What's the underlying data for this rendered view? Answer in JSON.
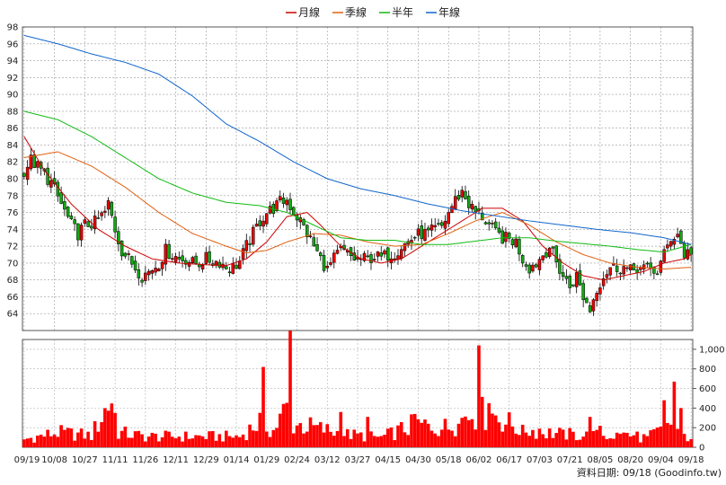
{
  "chart_data": {
    "type": "candlestick",
    "legend": {
      "placement": "top-center",
      "items": [
        {
          "name": "月線",
          "color": "#cc0000"
        },
        {
          "name": "季線",
          "color": "#e06010"
        },
        {
          "name": "半年",
          "color": "#11bb11"
        },
        {
          "name": "年線",
          "color": "#1166cc"
        }
      ]
    },
    "price_axis": {
      "min": 62,
      "max": 98,
      "ticks": [
        64,
        66,
        68,
        70,
        72,
        74,
        76,
        78,
        80,
        82,
        84,
        86,
        88,
        90,
        92,
        94,
        96,
        98
      ],
      "grid": true
    },
    "volume_axis": {
      "min": 0,
      "max": 1100,
      "ticks": [
        0,
        200,
        400,
        600,
        800,
        1000
      ],
      "tick_labels": [
        "0",
        "200",
        "400",
        "600",
        "800",
        "1,000"
      ]
    },
    "x_labels": [
      "09/19",
      "10/08",
      "10/27",
      "11/11",
      "11/26",
      "12/11",
      "12/29",
      "01/14",
      "01/29",
      "02/24",
      "03/12",
      "03/27",
      "04/15",
      "04/30",
      "05/18",
      "06/02",
      "06/17",
      "07/03",
      "07/21",
      "08/05",
      "08/20",
      "09/04",
      "09/18"
    ],
    "x_label_index": [
      0,
      9,
      18,
      27,
      36,
      45,
      54,
      63,
      72,
      81,
      90,
      99,
      108,
      117,
      126,
      135,
      144,
      153,
      162,
      171,
      180,
      189,
      198
    ],
    "series": [
      {
        "name": "月線",
        "color": "#cc0000",
        "anchors": [
          [
            0,
            85
          ],
          [
            6,
            81
          ],
          [
            14,
            77
          ],
          [
            22,
            74
          ],
          [
            30,
            72
          ],
          [
            38,
            70.5
          ],
          [
            46,
            70
          ],
          [
            54,
            69.8
          ],
          [
            60,
            69.7
          ],
          [
            66,
            70.5
          ],
          [
            72,
            72.5
          ],
          [
            78,
            75.5
          ],
          [
            84,
            76
          ],
          [
            88,
            74.5
          ],
          [
            94,
            72
          ],
          [
            100,
            70.5
          ],
          [
            106,
            70
          ],
          [
            112,
            70.5
          ],
          [
            118,
            72
          ],
          [
            124,
            73.5
          ],
          [
            130,
            75
          ],
          [
            136,
            76.5
          ],
          [
            142,
            76.5
          ],
          [
            148,
            75
          ],
          [
            154,
            72
          ],
          [
            160,
            70
          ],
          [
            166,
            68.5
          ],
          [
            172,
            68
          ],
          [
            178,
            68.5
          ],
          [
            184,
            69
          ],
          [
            190,
            70
          ],
          [
            196,
            70.5
          ],
          [
            198,
            71
          ]
        ]
      },
      {
        "name": "季線",
        "color": "#e06010",
        "anchors": [
          [
            0,
            82.5
          ],
          [
            10,
            83.2
          ],
          [
            20,
            81.5
          ],
          [
            30,
            79
          ],
          [
            40,
            76
          ],
          [
            50,
            73.5
          ],
          [
            60,
            72
          ],
          [
            66,
            71.2
          ],
          [
            72,
            71.5
          ],
          [
            78,
            72.5
          ],
          [
            86,
            73.5
          ],
          [
            94,
            73.3
          ],
          [
            102,
            72.5
          ],
          [
            110,
            72
          ],
          [
            118,
            72.2
          ],
          [
            126,
            73.5
          ],
          [
            134,
            75
          ],
          [
            142,
            76
          ],
          [
            150,
            74.5
          ],
          [
            158,
            72.5
          ],
          [
            166,
            71
          ],
          [
            174,
            70
          ],
          [
            182,
            69.5
          ],
          [
            190,
            69.3
          ],
          [
            198,
            69.5
          ]
        ]
      },
      {
        "name": "半年",
        "color": "#11bb11",
        "anchors": [
          [
            0,
            88
          ],
          [
            10,
            87
          ],
          [
            20,
            85
          ],
          [
            30,
            82.5
          ],
          [
            40,
            80
          ],
          [
            50,
            78.3
          ],
          [
            60,
            77.2
          ],
          [
            70,
            76.8
          ],
          [
            78,
            76
          ],
          [
            86,
            74.5
          ],
          [
            94,
            73
          ],
          [
            102,
            72.7
          ],
          [
            110,
            72.7
          ],
          [
            118,
            72.2
          ],
          [
            126,
            72.2
          ],
          [
            134,
            72.6
          ],
          [
            142,
            73
          ],
          [
            150,
            73
          ],
          [
            158,
            72.6
          ],
          [
            166,
            72.3
          ],
          [
            174,
            72
          ],
          [
            182,
            71.6
          ],
          [
            190,
            71.3
          ],
          [
            198,
            72.2
          ]
        ]
      },
      {
        "name": "年線",
        "color": "#1166cc",
        "anchors": [
          [
            0,
            97
          ],
          [
            10,
            96
          ],
          [
            20,
            94.8
          ],
          [
            30,
            93.8
          ],
          [
            40,
            92.4
          ],
          [
            50,
            89.8
          ],
          [
            60,
            86.5
          ],
          [
            70,
            84.4
          ],
          [
            80,
            82
          ],
          [
            90,
            80
          ],
          [
            100,
            78.8
          ],
          [
            110,
            78
          ],
          [
            120,
            77
          ],
          [
            130,
            76.2
          ],
          [
            140,
            75.6
          ],
          [
            150,
            75
          ],
          [
            160,
            74.5
          ],
          [
            170,
            74
          ],
          [
            180,
            73.6
          ],
          [
            190,
            73
          ],
          [
            198,
            72.2
          ]
        ]
      }
    ],
    "candles": {
      "count": 199,
      "close_anchors": [
        [
          0,
          81
        ],
        [
          2,
          82.2
        ],
        [
          5,
          81
        ],
        [
          8,
          79.5
        ],
        [
          11,
          77
        ],
        [
          14,
          74.5
        ],
        [
          16,
          73.5
        ],
        [
          18,
          74.5
        ],
        [
          21,
          74.8
        ],
        [
          24,
          76
        ],
        [
          25,
          77
        ],
        [
          27,
          74
        ],
        [
          29,
          71.5
        ],
        [
          31,
          70.5
        ],
        [
          33,
          69.5
        ],
        [
          35,
          68.5
        ],
        [
          37,
          69
        ],
        [
          40,
          70
        ],
        [
          42,
          71.5
        ],
        [
          44,
          71
        ],
        [
          46,
          70.5
        ],
        [
          48,
          70.5
        ],
        [
          50,
          70
        ],
        [
          52,
          70
        ],
        [
          54,
          70.5
        ],
        [
          56,
          70.2
        ],
        [
          58,
          70.2
        ],
        [
          60,
          69.5
        ],
        [
          62,
          69.5
        ],
        [
          64,
          70.2
        ],
        [
          66,
          72
        ],
        [
          68,
          73.5
        ],
        [
          70,
          75
        ],
        [
          72,
          76
        ],
        [
          74,
          76.5
        ],
        [
          76,
          77.2
        ],
        [
          78,
          77.5
        ],
        [
          80,
          76
        ],
        [
          82,
          75
        ],
        [
          84,
          73.5
        ],
        [
          86,
          72
        ],
        [
          88,
          70.5
        ],
        [
          90,
          69.2
        ],
        [
          92,
          70.5
        ],
        [
          94,
          71.5
        ],
        [
          96,
          71
        ],
        [
          98,
          70.5
        ],
        [
          100,
          70.5
        ],
        [
          102,
          70.5
        ],
        [
          104,
          70.8
        ],
        [
          106,
          70.6
        ],
        [
          108,
          71
        ],
        [
          110,
          71.2
        ],
        [
          112,
          72
        ],
        [
          114,
          72.5
        ],
        [
          116,
          73.2
        ],
        [
          118,
          73.5
        ],
        [
          120,
          73.5
        ],
        [
          122,
          74
        ],
        [
          124,
          74.3
        ],
        [
          126,
          76
        ],
        [
          128,
          77.5
        ],
        [
          130,
          78.5
        ],
        [
          132,
          77
        ],
        [
          134,
          76
        ],
        [
          136,
          75.5
        ],
        [
          138,
          74.5
        ],
        [
          140,
          73.5
        ],
        [
          142,
          73
        ],
        [
          144,
          72.8
        ],
        [
          146,
          72.5
        ],
        [
          148,
          70.5
        ],
        [
          150,
          69.5
        ],
        [
          152,
          70
        ],
        [
          154,
          71
        ],
        [
          156,
          72
        ],
        [
          158,
          70
        ],
        [
          160,
          68.5
        ],
        [
          162,
          67.2
        ],
        [
          164,
          68.5
        ],
        [
          166,
          66
        ],
        [
          168,
          64.5
        ],
        [
          170,
          67
        ],
        [
          172,
          68.5
        ],
        [
          174,
          69.5
        ],
        [
          176,
          69.5
        ],
        [
          178,
          69.5
        ],
        [
          180,
          69
        ],
        [
          182,
          69.5
        ],
        [
          184,
          69.3
        ],
        [
          186,
          69.2
        ],
        [
          188,
          69
        ],
        [
          190,
          71
        ],
        [
          192,
          73
        ],
        [
          194,
          73.5
        ],
        [
          196,
          71
        ],
        [
          198,
          71.5
        ]
      ],
      "volume_anchors": [
        [
          0,
          80
        ],
        [
          10,
          150
        ],
        [
          20,
          120
        ],
        [
          26,
          500
        ],
        [
          28,
          150
        ],
        [
          36,
          110
        ],
        [
          46,
          110
        ],
        [
          56,
          110
        ],
        [
          64,
          110
        ],
        [
          70,
          260
        ],
        [
          74,
          170
        ],
        [
          78,
          400
        ],
        [
          80,
          240
        ],
        [
          86,
          200
        ],
        [
          96,
          130
        ],
        [
          106,
          100
        ],
        [
          116,
          230
        ],
        [
          126,
          200
        ],
        [
          133,
          350
        ],
        [
          140,
          330
        ],
        [
          146,
          200
        ],
        [
          155,
          150
        ],
        [
          165,
          120
        ],
        [
          175,
          120
        ],
        [
          185,
          100
        ],
        [
          189,
          170
        ],
        [
          192,
          260
        ],
        [
          196,
          110
        ],
        [
          198,
          110
        ]
      ],
      "volume_spikes": [
        [
          71,
          820
        ],
        [
          79,
          1190
        ],
        [
          94,
          360
        ],
        [
          102,
          310
        ],
        [
          116,
          340
        ],
        [
          129,
          240
        ],
        [
          135,
          1040
        ],
        [
          138,
          450
        ],
        [
          148,
          230
        ],
        [
          153,
          190
        ],
        [
          160,
          180
        ],
        [
          168,
          310
        ],
        [
          171,
          220
        ],
        [
          178,
          150
        ],
        [
          182,
          160
        ],
        [
          190,
          480
        ],
        [
          193,
          670
        ],
        [
          195,
          400
        ]
      ]
    }
  },
  "credit": "資料日期: 09/18 (Goodinfo.tw)"
}
